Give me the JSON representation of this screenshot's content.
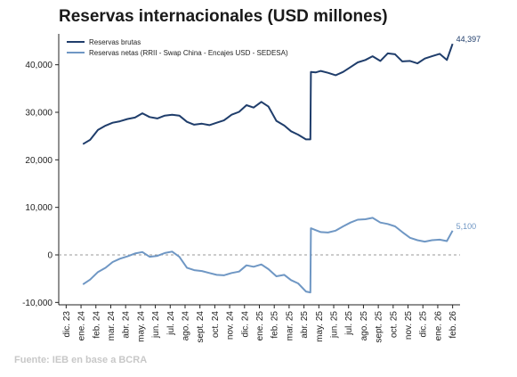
{
  "chart_data": {
    "type": "line",
    "title": "Reservas internacionales (USD millones)",
    "source": "Fuente: IEB en base a BCRA",
    "y_ticks": [
      "-10,000",
      "0",
      "10,000",
      "20,000",
      "30,000",
      "40,000"
    ],
    "y_tick_values": [
      -10000,
      0,
      10000,
      20000,
      30000,
      40000
    ],
    "ylim": [
      -10500,
      46500
    ],
    "x_ticks": [
      "dic. 23",
      "ene. 24",
      "feb. 24",
      "mar. 24",
      "abr. 24",
      "may. 24",
      "jun. 24",
      "jul. 24",
      "ago. 24",
      "sept. 24",
      "oct. 24",
      "nov. 24",
      "dic. 24",
      "ene. 25",
      "feb. 25",
      "mar. 25",
      "abr. 25",
      "may. 25",
      "jun. 25",
      "jul. 25",
      "ago. 25",
      "sept. 25",
      "oct. 25",
      "nov. 25",
      "dic. 25",
      "ene. 26",
      "feb. 26"
    ],
    "zero_line": "dashed",
    "grid": false,
    "legend_position": "top-left",
    "x": [
      "2024-01-05",
      "2024-01-20",
      "2024-02-05",
      "2024-02-20",
      "2024-03-05",
      "2024-03-20",
      "2024-04-05",
      "2024-04-20",
      "2024-05-05",
      "2024-05-20",
      "2024-06-05",
      "2024-06-20",
      "2024-07-05",
      "2024-07-20",
      "2024-08-05",
      "2024-08-20",
      "2024-09-05",
      "2024-09-20",
      "2024-10-05",
      "2024-10-20",
      "2024-11-05",
      "2024-11-20",
      "2024-12-05",
      "2024-12-20",
      "2025-01-05",
      "2025-01-20",
      "2025-02-05",
      "2025-02-20",
      "2025-03-05",
      "2025-03-20",
      "2025-04-05",
      "2025-04-14",
      "2025-04-15",
      "2025-04-25",
      "2025-05-05",
      "2025-05-20",
      "2025-06-05",
      "2025-06-20",
      "2025-07-05",
      "2025-07-20",
      "2025-08-05",
      "2025-08-20",
      "2025-09-05",
      "2025-09-20",
      "2025-10-05",
      "2025-10-20",
      "2025-11-05",
      "2025-11-20",
      "2025-12-05",
      "2025-12-20",
      "2026-01-05",
      "2026-01-20",
      "2026-02-01"
    ],
    "series": [
      {
        "name": "Reservas brutas",
        "color": "#1f3d6b",
        "end_label": "44,397",
        "values": [
          23300,
          24200,
          26300,
          27200,
          27800,
          28100,
          28600,
          28900,
          29800,
          29000,
          28700,
          29300,
          29500,
          29300,
          28000,
          27400,
          27600,
          27300,
          27800,
          28300,
          29500,
          30100,
          31500,
          31000,
          32200,
          31200,
          28200,
          27200,
          26000,
          25300,
          24300,
          24300,
          38500,
          38400,
          38700,
          38300,
          37800,
          38500,
          39500,
          40500,
          41000,
          41800,
          40800,
          42400,
          42200,
          40700,
          40800,
          40300,
          41300,
          41800,
          42300,
          41000,
          44397
        ]
      },
      {
        "name": "Reservas netas (RRII - Swap China - Encajes USD - SEDESA)",
        "color": "#6f97c4",
        "end_label": "5,100",
        "values": [
          -6200,
          -5200,
          -3600,
          -2700,
          -1500,
          -800,
          -300,
          300,
          600,
          -400,
          -200,
          400,
          700,
          -400,
          -2700,
          -3200,
          -3400,
          -3800,
          -4200,
          -4300,
          -3800,
          -3500,
          -2200,
          -2500,
          -2000,
          -3000,
          -4500,
          -4200,
          -5300,
          -6000,
          -7700,
          -7900,
          5600,
          5200,
          4800,
          4700,
          5100,
          6000,
          6800,
          7400,
          7500,
          7800,
          6800,
          6500,
          6000,
          4800,
          3600,
          3100,
          2800,
          3100,
          3200,
          2900,
          5100
        ]
      }
    ]
  }
}
